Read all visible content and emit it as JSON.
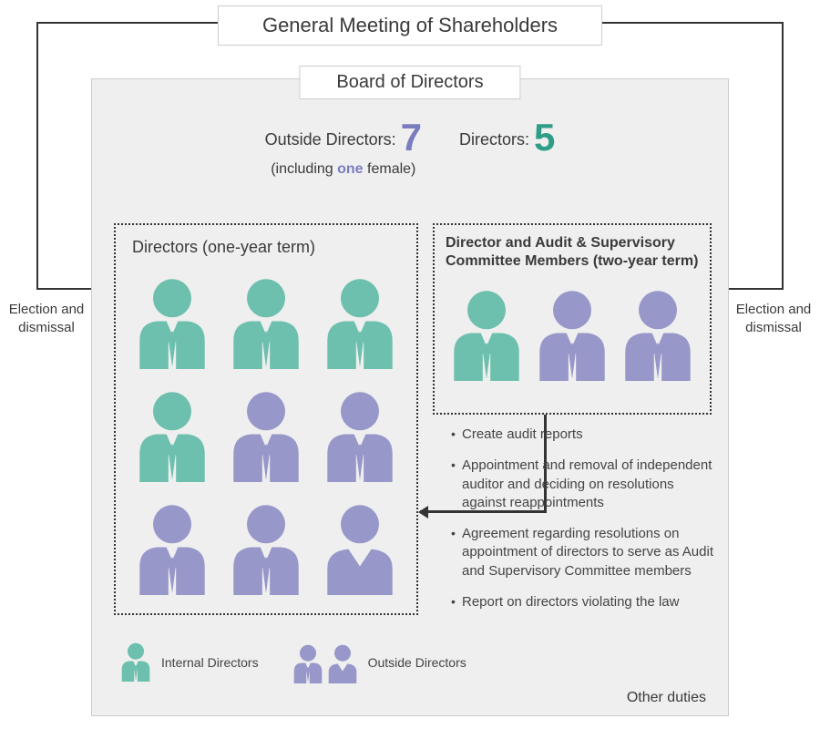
{
  "type": "org-governance-diagram",
  "colors": {
    "internal": "#6cc0ad",
    "outside": "#9797c9",
    "panel_bg": "#efefef",
    "audit_bg": "#fdfada",
    "text": "#3a3a3a",
    "accent_purple": "#7a7cc0",
    "accent_teal": "#2e9e87",
    "line": "#333333"
  },
  "top_title": "General Meeting of Shareholders",
  "board_title": "Board of Directors",
  "stats": {
    "outside_label": "Outside Directors:",
    "outside_count": "7",
    "outside_note_prefix": "(including ",
    "outside_note_highlight": "one",
    "outside_note_suffix": " female)",
    "directors_label": "Directors:",
    "directors_count": "5"
  },
  "directors_box": {
    "title": "Directors (one-year term)",
    "members": [
      {
        "type": "internal",
        "gender": "m"
      },
      {
        "type": "internal",
        "gender": "m"
      },
      {
        "type": "internal",
        "gender": "m"
      },
      {
        "type": "internal",
        "gender": "m"
      },
      {
        "type": "outside",
        "gender": "m"
      },
      {
        "type": "outside",
        "gender": "m"
      },
      {
        "type": "outside",
        "gender": "m"
      },
      {
        "type": "outside",
        "gender": "m"
      },
      {
        "type": "outside",
        "gender": "f"
      }
    ]
  },
  "audit_box": {
    "title": "Director and Audit & Supervisory Committee Members (two-year term)",
    "members": [
      {
        "type": "internal",
        "gender": "m"
      },
      {
        "type": "outside",
        "gender": "m"
      },
      {
        "type": "outside",
        "gender": "m"
      }
    ]
  },
  "duties": [
    "Create audit reports",
    "Appointment and removal of independent auditor and deciding on resolutions against reappointments",
    "Agreement regarding resolutions on appointment of directors to serve as Audit and Supervisory Committee members",
    "Report on directors violating the law"
  ],
  "other_duties": "Other duties",
  "legend": {
    "internal": "Internal Directors",
    "outside": "Outside Directors"
  },
  "side_labels": {
    "left": "Election and dismissal",
    "right": "Election and dismissal"
  }
}
